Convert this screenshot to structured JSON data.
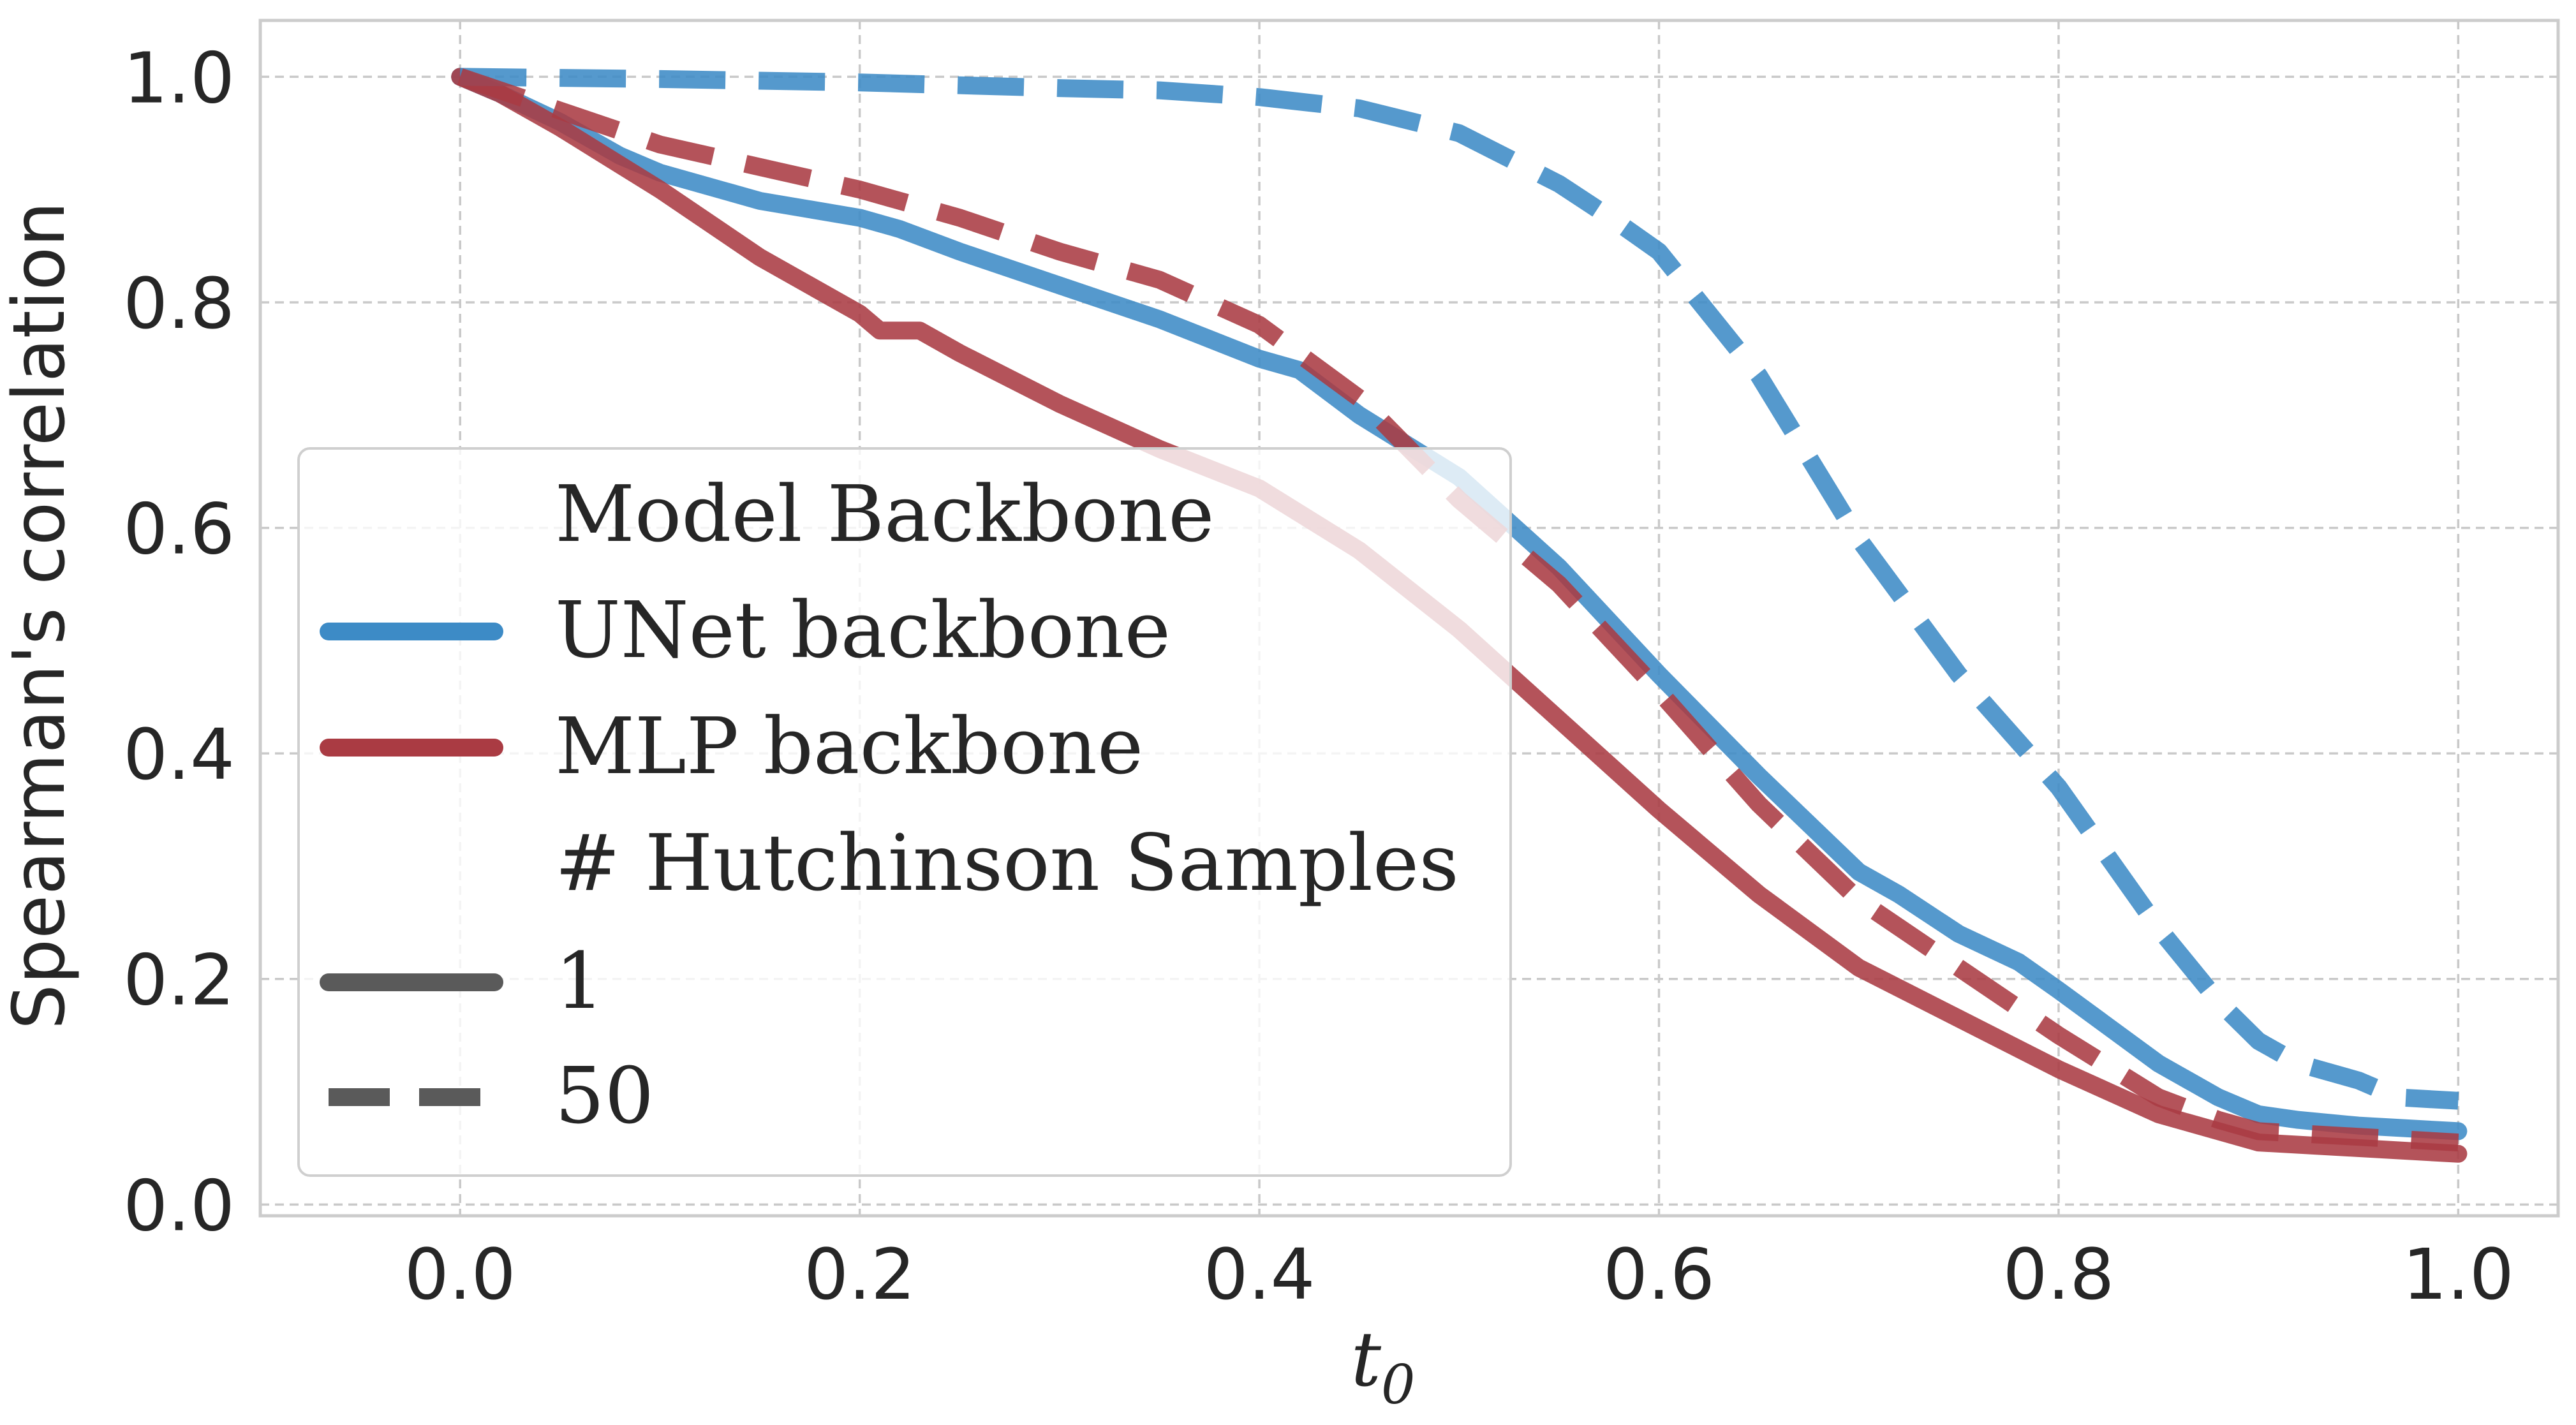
{
  "chart_data": {
    "type": "line",
    "title": "",
    "xlabel_main": "t",
    "xlabel_sub": "0",
    "ylabel": "Spearman's correlation",
    "xlim": [
      -0.1,
      1.05
    ],
    "ylim": [
      -0.01,
      1.05
    ],
    "xticks": [
      0.0,
      0.2,
      0.4,
      0.6,
      0.8,
      1.0
    ],
    "xtick_labels": [
      "0.0",
      "0.2",
      "0.4",
      "0.6",
      "0.8",
      "1.0"
    ],
    "yticks": [
      0.0,
      0.2,
      0.4,
      0.6,
      0.8,
      1.0
    ],
    "ytick_labels": [
      "0.0",
      "0.2",
      "0.4",
      "0.6",
      "0.8",
      "1.0"
    ],
    "grid": true,
    "legend": {
      "placement": "lower-left",
      "backbone_title": "Model Backbone",
      "unet_label": "UNet backbone",
      "mlp_label": "MLP backbone",
      "samples_title": "# Hutchinson Samples",
      "solid_label": "1",
      "dashed_label": "50"
    },
    "colors": {
      "unet": "#3d8bc6",
      "mlp": "#aa3b43",
      "style_legend": "#5a5a5a"
    },
    "series": [
      {
        "name": "UNet backbone, 1 sample",
        "backbone": "unet",
        "dashed": false,
        "x": [
          0,
          0.02,
          0.05,
          0.08,
          0.1,
          0.15,
          0.2,
          0.22,
          0.25,
          0.3,
          0.35,
          0.4,
          0.42,
          0.45,
          0.5,
          0.55,
          0.6,
          0.65,
          0.7,
          0.72,
          0.75,
          0.78,
          0.8,
          0.85,
          0.88,
          0.9,
          0.92,
          0.95,
          1.0
        ],
        "y": [
          1.0,
          0.985,
          0.96,
          0.93,
          0.915,
          0.89,
          0.875,
          0.865,
          0.845,
          0.815,
          0.785,
          0.75,
          0.74,
          0.7,
          0.645,
          0.565,
          0.47,
          0.38,
          0.295,
          0.275,
          0.24,
          0.215,
          0.19,
          0.125,
          0.095,
          0.08,
          0.075,
          0.07,
          0.065
        ]
      },
      {
        "name": "MLP backbone, 1 sample",
        "backbone": "mlp",
        "dashed": false,
        "x": [
          0,
          0.02,
          0.05,
          0.1,
          0.15,
          0.2,
          0.21,
          0.23,
          0.25,
          0.3,
          0.35,
          0.4,
          0.45,
          0.5,
          0.55,
          0.6,
          0.65,
          0.7,
          0.75,
          0.8,
          0.85,
          0.88,
          0.9,
          0.95,
          1.0
        ],
        "y": [
          1.0,
          0.985,
          0.955,
          0.9,
          0.84,
          0.79,
          0.775,
          0.775,
          0.755,
          0.71,
          0.67,
          0.635,
          0.58,
          0.51,
          0.43,
          0.35,
          0.275,
          0.21,
          0.165,
          0.12,
          0.08,
          0.065,
          0.055,
          0.05,
          0.045
        ]
      },
      {
        "name": "UNet backbone, 50 samples",
        "backbone": "unet",
        "dashed": true,
        "x": [
          0,
          0.1,
          0.2,
          0.3,
          0.35,
          0.4,
          0.45,
          0.5,
          0.55,
          0.58,
          0.6,
          0.65,
          0.7,
          0.75,
          0.8,
          0.85,
          0.88,
          0.9,
          0.92,
          0.95,
          0.97,
          1.0
        ],
        "y": [
          1.0,
          0.998,
          0.995,
          0.99,
          0.988,
          0.982,
          0.972,
          0.95,
          0.905,
          0.87,
          0.845,
          0.735,
          0.59,
          0.47,
          0.37,
          0.245,
          0.18,
          0.145,
          0.125,
          0.11,
          0.095,
          0.092
        ]
      },
      {
        "name": "MLP backbone, 50 samples",
        "backbone": "mlp",
        "dashed": true,
        "x": [
          0,
          0.05,
          0.1,
          0.15,
          0.2,
          0.25,
          0.3,
          0.35,
          0.4,
          0.45,
          0.5,
          0.55,
          0.6,
          0.65,
          0.7,
          0.75,
          0.8,
          0.85,
          0.88,
          0.9,
          0.95,
          1.0
        ],
        "y": [
          1.0,
          0.97,
          0.94,
          0.92,
          0.9,
          0.875,
          0.845,
          0.82,
          0.78,
          0.715,
          0.625,
          0.55,
          0.455,
          0.355,
          0.27,
          0.21,
          0.15,
          0.095,
          0.075,
          0.065,
          0.06,
          0.055
        ]
      }
    ]
  }
}
